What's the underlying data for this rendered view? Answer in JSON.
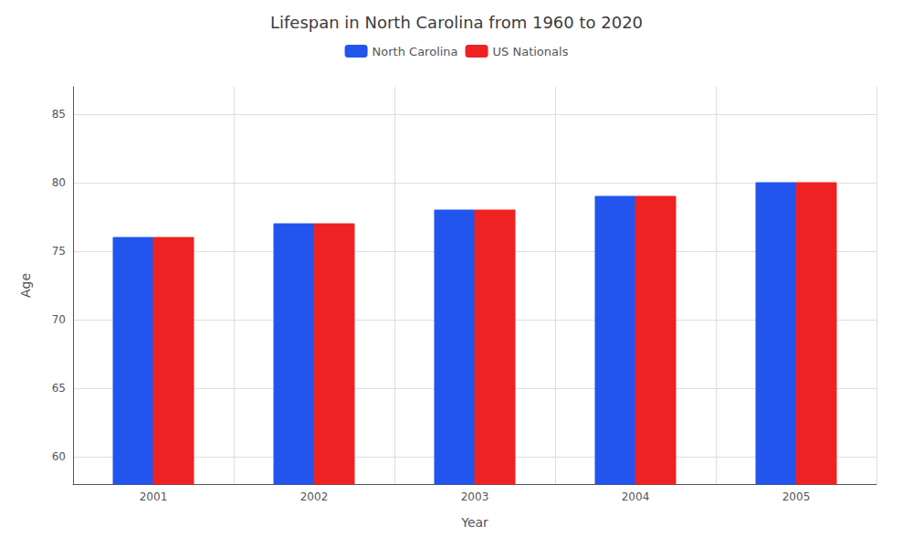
{
  "chart_data": {
    "type": "bar",
    "title": "Lifespan in North Carolina from 1960 to 2020",
    "x_label": "Year",
    "y_label": "Age",
    "categories": [
      "2001",
      "2002",
      "2003",
      "2004",
      "2005"
    ],
    "series": [
      {
        "name": "North Carolina",
        "color": "#2255ee",
        "values": [
          76,
          77,
          78,
          79,
          80
        ]
      },
      {
        "name": "US Nationals",
        "color": "#ee2222",
        "values": [
          76,
          77,
          78,
          79,
          80
        ]
      }
    ],
    "ylim": [
      58,
      87
    ],
    "yticks": [
      60,
      65,
      70,
      75,
      80,
      85
    ],
    "grid": true,
    "legend": "top"
  }
}
